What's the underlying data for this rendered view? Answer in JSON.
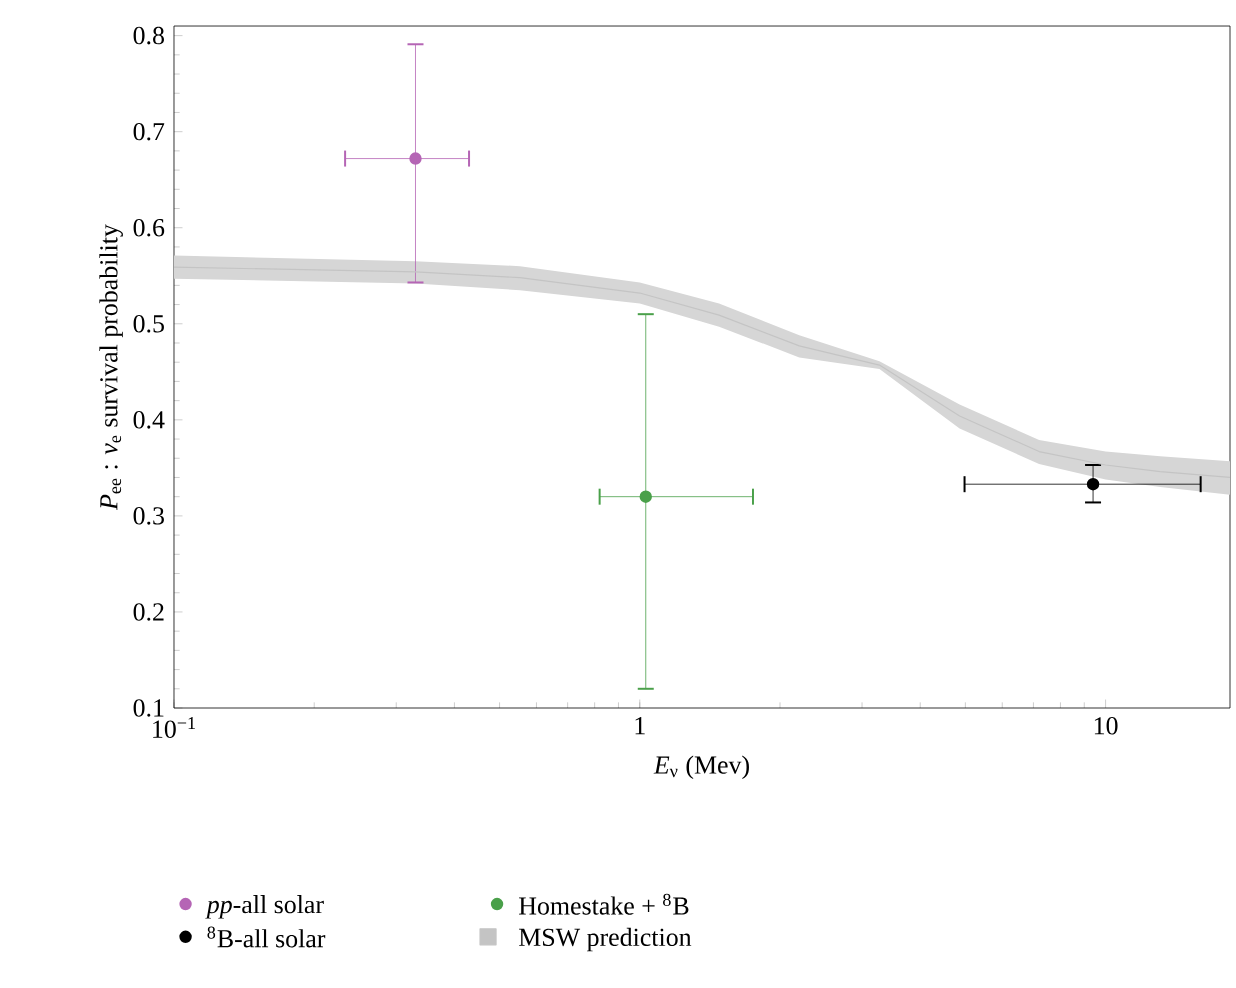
{
  "chart_data": {
    "type": "scatter",
    "xlabel": "*E*$_{ν}$ (Mev)",
    "ylabel": "*P*$_{ee}$ : *ν*$_{e}$ survival probability",
    "log": "x",
    "xlim": [
      0.1,
      18.5
    ],
    "xticks": [
      {
        "value": 0.1,
        "label": "10$^{−1}$"
      },
      1,
      10
    ],
    "ylim": [
      0.1,
      0.81
    ],
    "yticks": [
      0.1,
      0.2,
      0.3,
      0.4,
      0.5,
      0.6,
      0.7,
      0.8
    ],
    "grid": false,
    "legend": "bottom",
    "series": [
      {
        "name": "*pp*-all solar",
        "marker": "circle",
        "color": "#b565b5",
        "x": [
          0.33
        ],
        "values": [
          0.672
        ],
        "errors": [
          [
            0.543,
            0.791
          ]
        ],
        "xerrors": [
          [
            0.233,
            0.43
          ]
        ]
      },
      {
        "name": "$^{8}$B-all solar",
        "marker": "circle",
        "color": "#000000",
        "x": [
          9.4
        ],
        "values": [
          0.333
        ],
        "errors": [
          [
            0.314,
            0.353
          ]
        ],
        "xerrors": [
          [
            4.98,
            16.0
          ]
        ]
      },
      {
        "name": "Homestake + $^{8}$B",
        "marker": "circle",
        "color": "#4aa04a",
        "x": [
          1.03
        ],
        "values": [
          0.32
        ],
        "errors": [
          [
            0.12,
            0.51
          ]
        ],
        "xerrors": [
          [
            0.82,
            1.75
          ]
        ]
      },
      {
        "name": "MSW prediction",
        "type": "line",
        "marker": "none",
        "color": "#c4c4c4",
        "x": [
          0.1,
          0.33,
          0.553,
          1,
          1.48,
          2.2,
          3.27,
          4.86,
          7.2,
          10,
          13.1,
          18.5
        ],
        "values": [
          0.559,
          0.554,
          0.548,
          0.532,
          0.509,
          0.477,
          0.457,
          0.404,
          0.367,
          0.353,
          0.346,
          0.34
        ],
        "lower": [
          0.547,
          0.542,
          0.535,
          0.521,
          0.497,
          0.465,
          0.453,
          0.391,
          0.354,
          0.338,
          0.33,
          0.322
        ],
        "upper": [
          0.571,
          0.565,
          0.56,
          0.543,
          0.521,
          0.488,
          0.461,
          0.416,
          0.379,
          0.367,
          0.362,
          0.357
        ]
      }
    ]
  }
}
